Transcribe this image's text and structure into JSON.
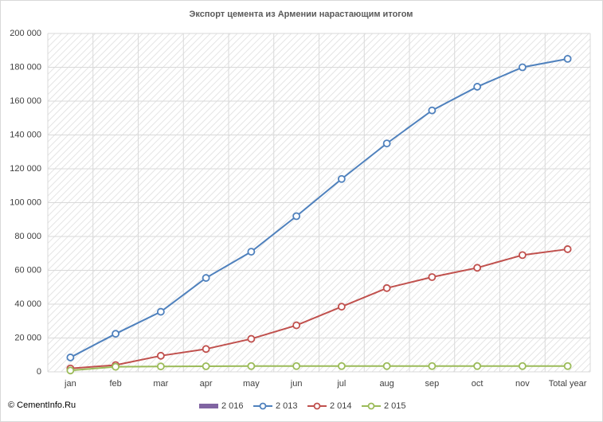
{
  "chart_data": {
    "type": "line",
    "title": "Экспорт цемента из Армении нарастающим  итогом",
    "annotation": "© CementInfo.Ru",
    "categories": [
      "jan",
      "feb",
      "mar",
      "apr",
      "may",
      "jun",
      "jul",
      "aug",
      "sep",
      "oct",
      "nov",
      "Total year"
    ],
    "series": [
      {
        "name": "2 016",
        "color": "#8064a2",
        "type": "bar",
        "values": [
          null,
          null,
          null,
          null,
          null,
          null,
          null,
          null,
          null,
          null,
          null,
          null
        ]
      },
      {
        "name": "2 013",
        "color": "#4f81bd",
        "values": [
          8500,
          22500,
          35500,
          55500,
          71000,
          92000,
          114000,
          135000,
          154500,
          168500,
          180000,
          185000
        ]
      },
      {
        "name": "2 014",
        "color": "#c0504d",
        "values": [
          2000,
          4000,
          9500,
          13500,
          19500,
          27500,
          38500,
          49500,
          56000,
          61500,
          69000,
          72500
        ]
      },
      {
        "name": "2 015",
        "color": "#9bbb59",
        "values": [
          800,
          3000,
          3200,
          3300,
          3400,
          3400,
          3400,
          3400,
          3400,
          3400,
          3400,
          3400
        ]
      }
    ],
    "ylim": [
      0,
      200000
    ],
    "yticks": [
      0,
      {
        "value": 20000,
        "label": "20 000"
      },
      {
        "value": 40000,
        "label": "40 000"
      },
      {
        "value": 60000,
        "label": "60 000"
      },
      {
        "value": 80000,
        "label": "80 000"
      },
      {
        "value": 100000,
        "label": "100 000"
      },
      {
        "value": 120000,
        "label": "120 000"
      },
      {
        "value": 140000,
        "label": "140 000"
      },
      {
        "value": 160000,
        "label": "160 000"
      },
      {
        "value": 180000,
        "label": "180 000"
      },
      {
        "value": 200000,
        "label": "200 000"
      }
    ],
    "grid": true,
    "legend": "bottom"
  }
}
